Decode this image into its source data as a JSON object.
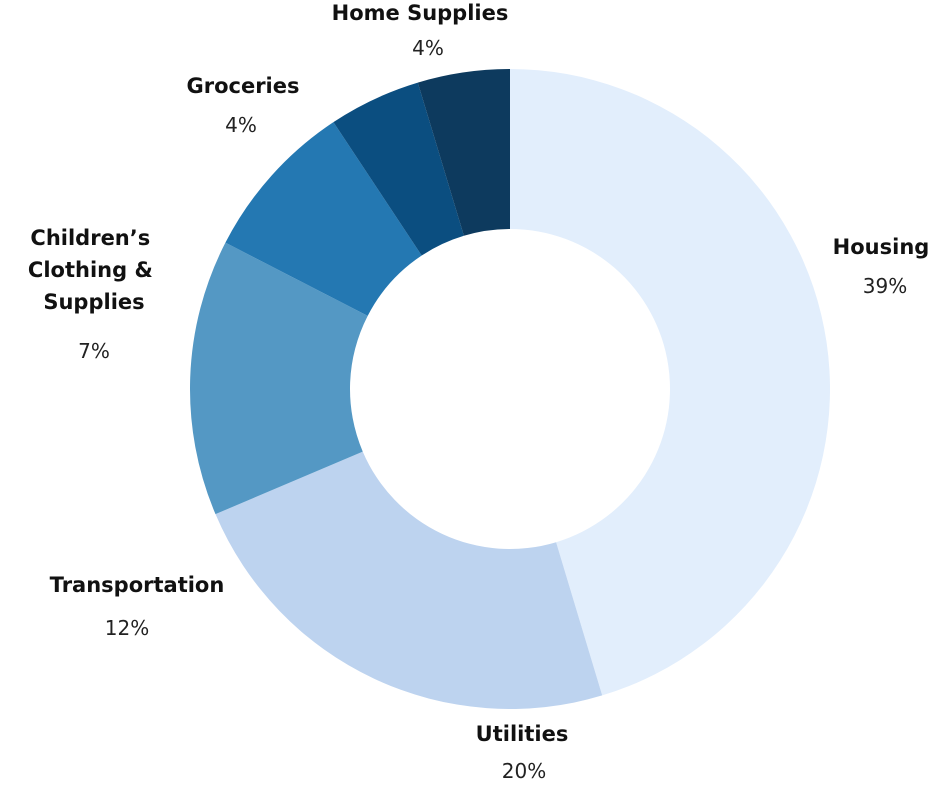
{
  "chart_data": {
    "type": "pie",
    "donut": true,
    "legend": "none",
    "slices": [
      {
        "label": "Housing",
        "percent_label": "39%",
        "value": 39,
        "color": "#e2eefc"
      },
      {
        "label": "Utilities",
        "percent_label": "20%",
        "value": 20,
        "color": "#bdd3ef"
      },
      {
        "label": "Transportation",
        "percent_label": "12%",
        "value": 12,
        "color": "#5498c4"
      },
      {
        "label": "Children’s Clothing & Supplies",
        "percent_label": "7%",
        "value": 7,
        "color": "#2478b2"
      },
      {
        "label": "Groceries",
        "percent_label": "4%",
        "value": 4,
        "color": "#0b4e80"
      },
      {
        "label": "Home Supplies",
        "percent_label": "4%",
        "value": 4,
        "color": "#0d3a5e"
      }
    ]
  }
}
